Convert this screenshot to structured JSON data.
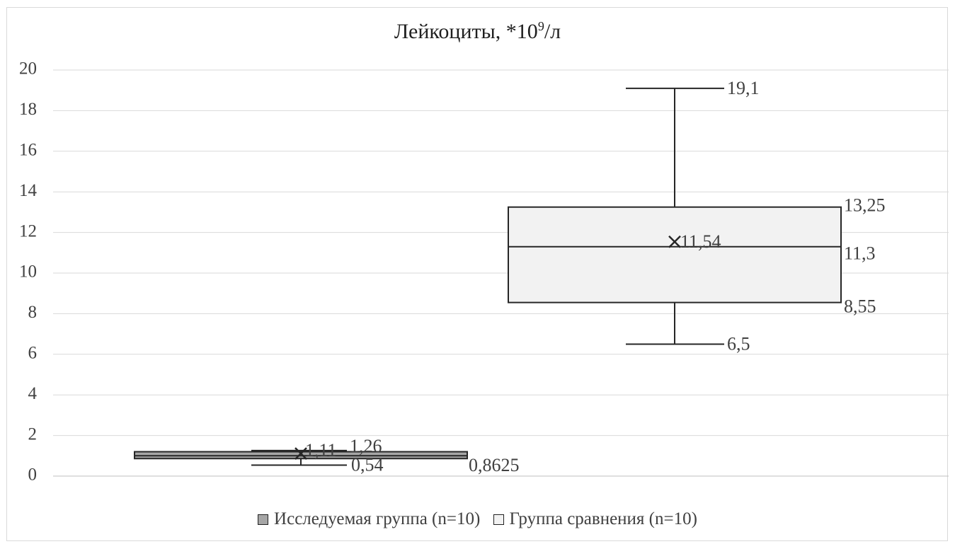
{
  "chart_data": {
    "type": "box",
    "title_main": "Лейкоциты, *10",
    "title_sup": "9",
    "title_tail": "/л",
    "xlabel": "",
    "ylabel": "",
    "ylim": [
      0,
      20
    ],
    "y_ticks": [
      "0",
      "2",
      "4",
      "6",
      "8",
      "10",
      "12",
      "14",
      "16",
      "18",
      "20"
    ],
    "grid": true,
    "legend_position": "bottom",
    "series": [
      {
        "name": "Исследуемая группа (n=10)",
        "color": "#a6a6a6",
        "min": 0.54,
        "q1": 0.8625,
        "median": 1.0,
        "q3": 1.2,
        "max": 1.26,
        "mean": 1.11,
        "labels": {
          "max": "1,26",
          "mean": "1,11",
          "q1": "0,8625",
          "min": "0,54"
        }
      },
      {
        "name": "Группа сравнения (n=10)",
        "color": "#f2f2f2",
        "min": 6.5,
        "q1": 8.55,
        "median": 11.3,
        "q3": 13.25,
        "max": 19.1,
        "mean": 11.54,
        "labels": {
          "max": "19,1",
          "q3": "13,25",
          "median": "11,3",
          "mean": "11,54",
          "q1": "8,55",
          "min": "6,5"
        }
      }
    ]
  }
}
